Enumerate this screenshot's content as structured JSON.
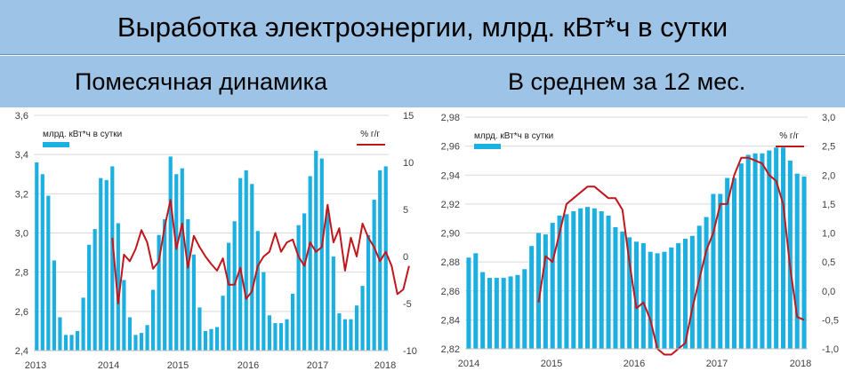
{
  "header": {
    "title": "Выработка электроэнергии, млрд. кВт*ч в сутки",
    "left_subtitle": "Помесячная динамика",
    "right_subtitle": "В среднем за 12 мес."
  },
  "colors": {
    "bar": "#1cb0e0",
    "line": "#c0161c",
    "grid": "#d9d9d9",
    "axis_text": "#404040"
  },
  "chart_data": [
    {
      "type": "bar",
      "legend": {
        "bar_label": "млрд. кВт*ч в сутки",
        "line_label": "% г/г"
      },
      "y_left": {
        "min": 2.4,
        "max": 3.6,
        "ticks": [
          "2,4",
          "2,6",
          "2,8",
          "3,0",
          "3,2",
          "3,4",
          "3,6"
        ]
      },
      "y_right": {
        "min": -10,
        "max": 15,
        "ticks": [
          "-10",
          "-5",
          "0",
          "5",
          "10",
          "15"
        ]
      },
      "x_ticks": [
        "2013",
        "2014",
        "2015",
        "2016",
        "2017",
        "2018"
      ],
      "grid": true,
      "series": [
        {
          "kind": "bar",
          "values": [
            3.36,
            3.3,
            3.19,
            2.86,
            2.57,
            2.48,
            2.48,
            2.5,
            2.67,
            2.94,
            3.02,
            3.28,
            3.27,
            3.34,
            3.05,
            2.76,
            2.57,
            2.48,
            2.49,
            2.53,
            2.71,
            2.99,
            3.07,
            3.39,
            3.3,
            3.33,
            3.07,
            2.89,
            2.62,
            2.5,
            2.51,
            2.52,
            2.68,
            2.95,
            3.06,
            3.28,
            3.32,
            3.25,
            3.01,
            2.8,
            2.58,
            2.54,
            2.54,
            2.56,
            2.69,
            3.04,
            3.1,
            3.29,
            3.42,
            3.38,
            3.12,
            2.88,
            2.59,
            2.56,
            2.56,
            2.63,
            2.73,
            2.99,
            3.17,
            3.32,
            3.34
          ]
        },
        {
          "kind": "line",
          "axis": "right",
          "start_index": 13,
          "values": [
            2.0,
            -5.0,
            0.2,
            -0.5,
            0.8,
            2.8,
            1.5,
            -1.3,
            -0.5,
            3.2,
            6.0,
            0.8,
            3.5,
            -1.2,
            2.2,
            1.0,
            0.0,
            -0.8,
            -1.5,
            -0.2,
            -3.0,
            -3.0,
            -1.2,
            -4.5,
            -3.7,
            -1.0,
            0.0,
            0.5,
            2.5,
            0.5,
            1.5,
            1.8,
            0.0,
            -1.0,
            1.5,
            0.5,
            1.0,
            5.5,
            1.5,
            3.0,
            -1.5,
            2.0,
            0.0,
            3.5,
            2.0,
            1.0,
            -0.5,
            0.5,
            -1.0,
            -4.0,
            -3.5,
            -1.0
          ]
        }
      ]
    },
    {
      "type": "bar",
      "legend": {
        "bar_label": "млрд. кВт*ч в сутки",
        "line_label": "% г/г"
      },
      "y_left": {
        "min": 2.82,
        "max": 2.98,
        "ticks": [
          "2,82",
          "2,84",
          "2,86",
          "2,88",
          "2,90",
          "2,92",
          "2,94",
          "2,96",
          "2,98"
        ]
      },
      "y_right": {
        "min": -1.0,
        "max": 3.0,
        "ticks": [
          "-1,0",
          "-0,5",
          "0,0",
          "0,5",
          "1,0",
          "1,5",
          "2,0",
          "2,5",
          "3,0"
        ]
      },
      "x_ticks": [
        "2014",
        "2015",
        "2016",
        "2017",
        "2018"
      ],
      "grid": true,
      "series": [
        {
          "kind": "bar",
          "values": [
            2.883,
            2.886,
            2.873,
            2.869,
            2.869,
            2.869,
            2.87,
            2.871,
            2.875,
            2.891,
            2.9,
            2.899,
            2.907,
            2.912,
            2.913,
            2.915,
            2.917,
            2.918,
            2.917,
            2.915,
            2.912,
            2.904,
            2.901,
            2.897,
            2.894,
            2.893,
            2.887,
            2.886,
            2.887,
            2.89,
            2.893,
            2.896,
            2.898,
            2.905,
            2.911,
            2.927,
            2.927,
            2.938,
            2.938,
            2.948,
            2.954,
            2.955,
            2.955,
            2.957,
            2.959,
            2.959,
            2.95,
            2.941,
            2.939
          ]
        },
        {
          "kind": "line",
          "axis": "right",
          "start_index": 10,
          "values": [
            -0.2,
            0.6,
            0.5,
            1.0,
            1.5,
            1.6,
            1.7,
            1.8,
            1.8,
            1.7,
            1.6,
            1.6,
            1.4,
            0.5,
            -0.3,
            -0.2,
            -0.5,
            -1.0,
            -1.1,
            -1.1,
            -1.0,
            -0.9,
            -0.3,
            0.2,
            0.7,
            1.0,
            1.5,
            1.5,
            2.0,
            2.3,
            2.3,
            2.25,
            2.2,
            2.0,
            1.9,
            1.5,
            0.4,
            -0.45,
            -0.5
          ]
        }
      ]
    }
  ]
}
